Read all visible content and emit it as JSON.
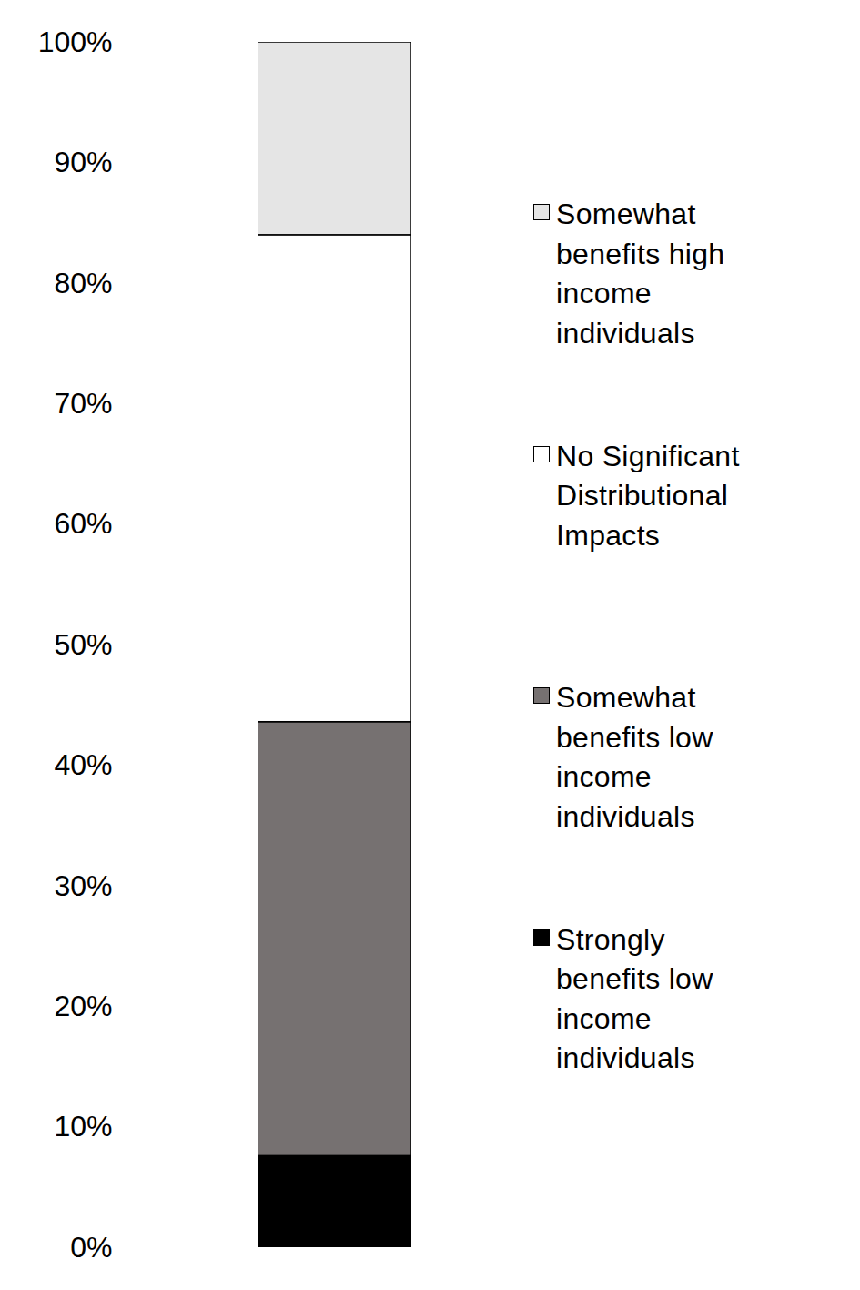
{
  "chart_data": {
    "type": "bar",
    "stacked": true,
    "categories": [
      null
    ],
    "series": [
      {
        "name": "Strongly benefits low income individuals",
        "color": "#000000",
        "values": [
          7.6
        ]
      },
      {
        "name": "Somewhat benefits low income individuals",
        "color": "#767171",
        "values": [
          36.0
        ]
      },
      {
        "name": "No Significant Distributional Impacts",
        "color": "#ffffff",
        "values": [
          40.4
        ]
      },
      {
        "name": "Somewhat benefits high income individuals",
        "color": "#e5e5e5",
        "values": [
          16.0
        ]
      }
    ],
    "ylim": [
      0,
      100
    ],
    "yticks": [
      {
        "value": 0,
        "label": "0%"
      },
      {
        "value": 10,
        "label": "10%"
      },
      {
        "value": 20,
        "label": "20%"
      },
      {
        "value": 30,
        "label": "30%"
      },
      {
        "value": 40,
        "label": "40%"
      },
      {
        "value": 50,
        "label": "50%"
      },
      {
        "value": 60,
        "label": "60%"
      },
      {
        "value": 70,
        "label": "70%"
      },
      {
        "value": 80,
        "label": "80%"
      },
      {
        "value": 90,
        "label": "90%"
      },
      {
        "value": 100,
        "label": "100%"
      }
    ],
    "tick_labels": "y",
    "legend": "right"
  }
}
